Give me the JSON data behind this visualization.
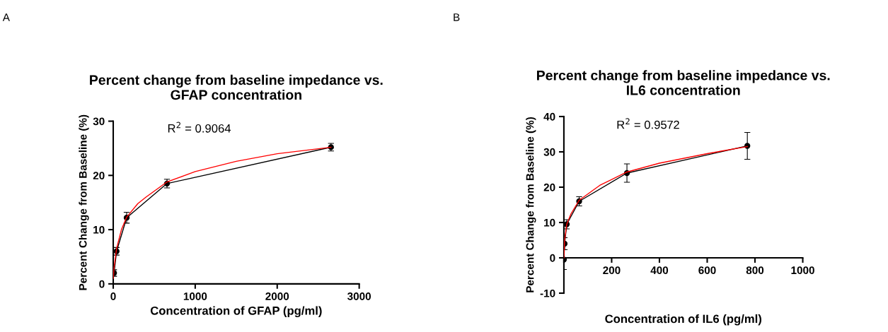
{
  "chart_data": [
    {
      "type": "line",
      "title": "Percent change from baseline impedance vs.\nGFAP concentration",
      "xlabel": "Concentration of GFAP (pg/ml)",
      "ylabel": "Percent Change from Baseline (%)",
      "annotations": [
        "A",
        "R$^{2}$ = 0.9064"
      ],
      "xlim": [
        0,
        3000
      ],
      "ylim": [
        0,
        30
      ],
      "xticks": [
        0,
        1000,
        2000,
        3000
      ],
      "yticks": [
        0,
        10,
        20,
        30
      ],
      "grid": false,
      "legend": false,
      "series": [
        {
          "color": "#000000",
          "marker": "circle",
          "x": [
            10,
            41,
            164,
            656,
            2656
          ],
          "values": [
            2.0,
            6.0,
            12.2,
            18.5,
            25.2
          ],
          "errors": [
            0.6,
            0.7,
            1.0,
            0.8,
            0.7
          ]
        },
        {
          "color": "#ff0000",
          "marker": "none",
          "x": [
            1,
            10,
            41,
            100,
            164,
            300,
            400,
            656,
            1000,
            1500,
            2000,
            2656
          ],
          "values": [
            1.0,
            3.0,
            6.5,
            10.0,
            12.3,
            14.8,
            16.0,
            18.8,
            20.7,
            22.6,
            24.0,
            25.2
          ]
        }
      ]
    },
    {
      "type": "line",
      "title": "Percent change from baseline impedance vs.\nIL6 concentration",
      "xlabel": "Concentration of IL6 (pg/ml)",
      "ylabel": "Percent Change from Baseline (%)",
      "annotations": [
        "B",
        "R$^{2}$ = 0.9572"
      ],
      "xlim": [
        0,
        1000
      ],
      "ylim": [
        -10,
        40
      ],
      "xticks": [
        {
          "value": 0,
          "label": null
        },
        200,
        400,
        600,
        800,
        1000
      ],
      "yticks": [
        -10,
        0,
        10,
        20,
        30,
        40
      ],
      "grid": false,
      "legend": false,
      "series": [
        {
          "color": "#000000",
          "marker": "circle",
          "x": [
            0,
            3,
            12,
            64,
            264,
            768
          ],
          "values": [
            -0.5,
            4.0,
            9.5,
            16.0,
            24.0,
            31.7
          ],
          "errors": [
            2.8,
            1.7,
            1.3,
            1.3,
            2.6,
            3.8
          ]
        },
        {
          "color": "#ff0000",
          "marker": "none",
          "x": [
            0,
            3,
            12,
            30,
            64,
            150,
            264,
            400,
            600,
            768
          ],
          "values": [
            0.0,
            5.0,
            9.5,
            12.5,
            16.3,
            20.5,
            24.3,
            26.8,
            29.5,
            31.5
          ]
        }
      ]
    }
  ]
}
